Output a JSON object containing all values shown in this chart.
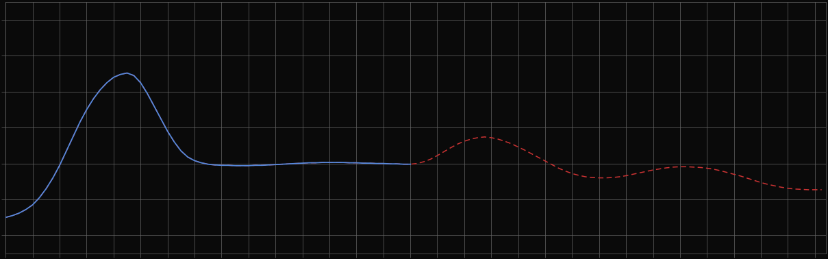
{
  "background_color": "#0a0a0a",
  "plot_bg_color": "#0a0a0a",
  "grid_color": "#666666",
  "blue_line_color": "#5588dd",
  "red_line_color": "#cc3333",
  "x_min": 0,
  "x_max": 365,
  "y_min": 1.5,
  "y_max": 8.5,
  "blue_x": [
    0,
    3,
    6,
    9,
    12,
    15,
    18,
    21,
    24,
    27,
    30,
    33,
    36,
    39,
    42,
    45,
    48,
    51,
    54,
    57,
    60,
    63,
    66,
    69,
    72,
    75,
    78,
    81,
    84,
    87,
    90,
    93,
    96,
    99,
    102,
    105,
    108,
    111,
    114,
    117,
    120,
    123,
    126,
    129,
    132,
    135,
    138,
    141,
    144,
    147,
    150,
    153,
    156,
    159,
    162,
    165,
    168,
    171,
    174,
    177,
    180
  ],
  "blue_y": [
    2.5,
    2.55,
    2.62,
    2.72,
    2.85,
    3.05,
    3.3,
    3.6,
    3.95,
    4.35,
    4.75,
    5.15,
    5.5,
    5.8,
    6.05,
    6.25,
    6.4,
    6.48,
    6.52,
    6.45,
    6.25,
    5.95,
    5.6,
    5.25,
    4.9,
    4.6,
    4.35,
    4.18,
    4.08,
    4.02,
    3.98,
    3.96,
    3.95,
    3.95,
    3.94,
    3.94,
    3.94,
    3.95,
    3.95,
    3.96,
    3.97,
    3.98,
    3.99,
    4.0,
    4.01,
    4.02,
    4.02,
    4.03,
    4.03,
    4.03,
    4.03,
    4.02,
    4.02,
    4.01,
    4.01,
    4.0,
    4.0,
    3.99,
    3.99,
    3.98,
    3.98
  ],
  "red_x": [
    0,
    3,
    6,
    9,
    12,
    15,
    18,
    21,
    24,
    27,
    30,
    33,
    36,
    39,
    42,
    45,
    48,
    51,
    54,
    57,
    60,
    63,
    66,
    69,
    72,
    75,
    78,
    81,
    84,
    87,
    90,
    93,
    96,
    99,
    102,
    105,
    108,
    111,
    114,
    117,
    120,
    123,
    126,
    129,
    132,
    135,
    138,
    141,
    144,
    147,
    150,
    153,
    156,
    159,
    162,
    165,
    168,
    171,
    174,
    177,
    180,
    183,
    186,
    189,
    192,
    195,
    198,
    201,
    204,
    207,
    210,
    213,
    216,
    219,
    222,
    225,
    228,
    231,
    234,
    237,
    240,
    243,
    246,
    249,
    252,
    255,
    258,
    261,
    264,
    267,
    270,
    273,
    276,
    279,
    282,
    285,
    288,
    291,
    294,
    297,
    300,
    303,
    306,
    309,
    312,
    315,
    318,
    321,
    324,
    327,
    330,
    333,
    336,
    339,
    342,
    345,
    348,
    351,
    354,
    357,
    360,
    363
  ],
  "red_y": [
    2.5,
    2.55,
    2.62,
    2.72,
    2.85,
    3.05,
    3.3,
    3.6,
    3.95,
    4.35,
    4.75,
    5.15,
    5.5,
    5.8,
    6.05,
    6.25,
    6.4,
    6.48,
    6.52,
    6.45,
    6.25,
    5.95,
    5.6,
    5.25,
    4.9,
    4.6,
    4.35,
    4.18,
    4.08,
    4.02,
    3.98,
    3.96,
    3.95,
    3.95,
    3.94,
    3.94,
    3.94,
    3.95,
    3.95,
    3.96,
    3.97,
    3.98,
    3.99,
    4.0,
    4.01,
    4.02,
    4.02,
    4.03,
    4.03,
    4.03,
    4.03,
    4.02,
    4.02,
    4.01,
    4.01,
    4.0,
    4.0,
    3.99,
    3.99,
    3.98,
    3.98,
    4.0,
    4.05,
    4.12,
    4.22,
    4.33,
    4.44,
    4.54,
    4.62,
    4.68,
    4.72,
    4.74,
    4.72,
    4.68,
    4.62,
    4.55,
    4.46,
    4.37,
    4.27,
    4.17,
    4.07,
    3.97,
    3.87,
    3.79,
    3.72,
    3.67,
    3.63,
    3.61,
    3.6,
    3.6,
    3.61,
    3.63,
    3.66,
    3.7,
    3.74,
    3.78,
    3.82,
    3.85,
    3.88,
    3.9,
    3.91,
    3.91,
    3.9,
    3.89,
    3.87,
    3.84,
    3.8,
    3.75,
    3.7,
    3.65,
    3.59,
    3.53,
    3.47,
    3.42,
    3.38,
    3.34,
    3.31,
    3.29,
    3.28,
    3.27,
    3.27,
    3.27
  ]
}
